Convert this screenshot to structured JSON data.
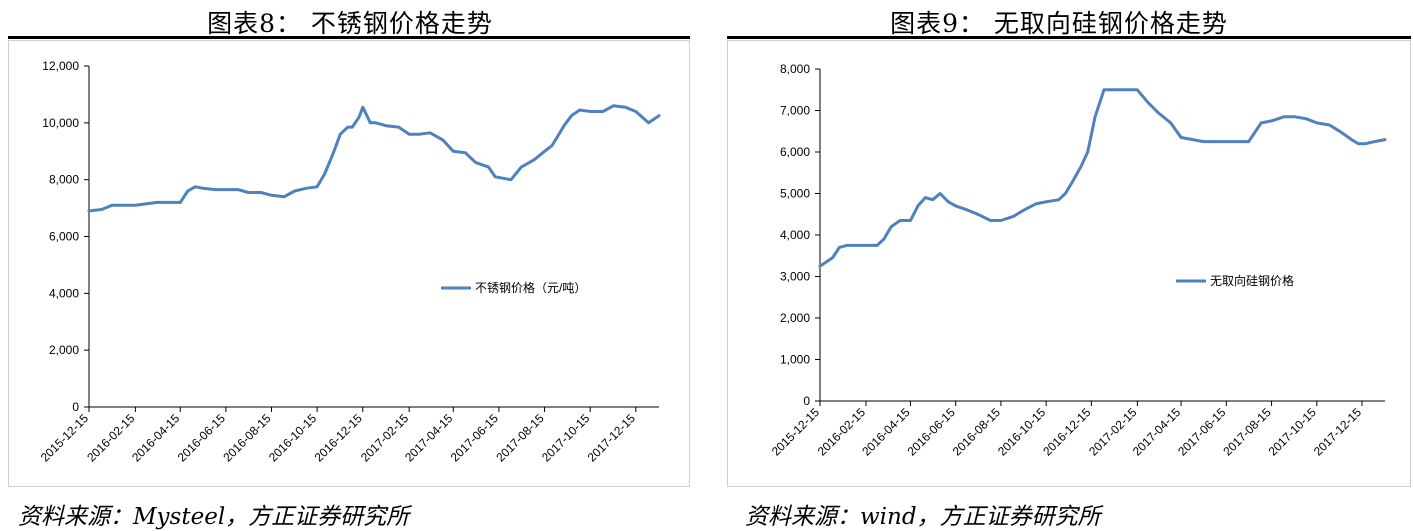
{
  "left_panel": {
    "title": "图表8：  不锈钢价格走势",
    "source": "资料来源：Mysteel，方正证券研究所"
  },
  "right_panel": {
    "title": "图表9：  无取向硅钢价格走势",
    "source": "资料来源：wind，方正证券研究所"
  },
  "line_color": "#4f81bd",
  "chart_data": [
    {
      "type": "line",
      "title": "",
      "xlabel": "",
      "ylabel": "",
      "ylim": [
        0,
        12000
      ],
      "yticks": [
        0,
        2000,
        4000,
        6000,
        8000,
        10000,
        12000
      ],
      "ytick_labels": [
        "0",
        "2,000",
        "4,000",
        "6,000",
        "8,000",
        "10,000",
        "12,000"
      ],
      "xlim": [
        "2015-12-15",
        "2018-01-15"
      ],
      "xtick_labels": [
        "2015-12-15",
        "2016-02-15",
        "2016-04-15",
        "2016-06-15",
        "2016-08-15",
        "2016-10-15",
        "2016-12-15",
        "2017-02-15",
        "2017-04-15",
        "2017-06-15",
        "2017-08-15",
        "2017-10-15",
        "2017-12-15"
      ],
      "grid": false,
      "legend": "center-right",
      "series": [
        {
          "name": "不锈钢价格（元/吨）",
          "x": [
            "2015-12-15",
            "2016-01-01",
            "2016-01-15",
            "2016-02-01",
            "2016-02-15",
            "2016-03-01",
            "2016-03-15",
            "2016-04-01",
            "2016-04-15",
            "2016-04-25",
            "2016-05-05",
            "2016-05-15",
            "2016-06-01",
            "2016-06-15",
            "2016-07-01",
            "2016-07-15",
            "2016-08-01",
            "2016-08-15",
            "2016-09-01",
            "2016-09-15",
            "2016-10-01",
            "2016-10-15",
            "2016-10-25",
            "2016-11-05",
            "2016-11-15",
            "2016-11-25",
            "2016-12-01",
            "2016-12-10",
            "2016-12-15",
            "2016-12-25",
            "2017-01-01",
            "2017-01-15",
            "2017-02-01",
            "2017-02-15",
            "2017-03-01",
            "2017-03-15",
            "2017-04-01",
            "2017-04-15",
            "2017-05-01",
            "2017-05-15",
            "2017-06-01",
            "2017-06-10",
            "2017-06-20",
            "2017-07-01",
            "2017-07-15",
            "2017-08-01",
            "2017-08-15",
            "2017-08-25",
            "2017-09-01",
            "2017-09-10",
            "2017-09-20",
            "2017-10-01",
            "2017-10-15",
            "2017-11-01",
            "2017-11-15",
            "2017-12-01",
            "2017-12-15",
            "2018-01-01",
            "2018-01-15"
          ],
          "y": [
            6900,
            6950,
            7100,
            7100,
            7100,
            7150,
            7200,
            7200,
            7200,
            7600,
            7750,
            7700,
            7650,
            7650,
            7650,
            7550,
            7550,
            7450,
            7400,
            7600,
            7700,
            7750,
            8200,
            8900,
            9600,
            9850,
            9850,
            10200,
            10550,
            10000,
            10000,
            9900,
            9850,
            9600,
            9600,
            9650,
            9400,
            9000,
            8950,
            8600,
            8450,
            8100,
            8050,
            8000,
            8450,
            8700,
            9000,
            9200,
            9500,
            9900,
            10250,
            10450,
            10400,
            10400,
            10600,
            10550,
            10400,
            10000,
            10250
          ]
        }
      ]
    },
    {
      "type": "line",
      "title": "",
      "xlabel": "",
      "ylabel": "",
      "ylim": [
        0,
        8000
      ],
      "yticks": [
        0,
        1000,
        2000,
        3000,
        4000,
        5000,
        6000,
        7000,
        8000
      ],
      "ytick_labels": [
        "0",
        "1,000",
        "2,000",
        "3,000",
        "4,000",
        "5,000",
        "6,000",
        "7,000",
        "8,000"
      ],
      "xlim": [
        "2015-12-15",
        "2018-01-15"
      ],
      "xtick_labels": [
        "2015-12-15",
        "2016-02-15",
        "2016-04-15",
        "2016-06-15",
        "2016-08-15",
        "2016-10-15",
        "2016-12-15",
        "2017-02-15",
        "2017-04-15",
        "2017-06-15",
        "2017-08-15",
        "2017-10-15",
        "2017-12-15"
      ],
      "grid": false,
      "legend": "center-right",
      "series": [
        {
          "name": "无取向硅钢价格",
          "x": [
            "2015-12-15",
            "2016-01-01",
            "2016-01-10",
            "2016-01-20",
            "2016-02-01",
            "2016-02-15",
            "2016-03-01",
            "2016-03-10",
            "2016-03-20",
            "2016-04-01",
            "2016-04-15",
            "2016-04-25",
            "2016-05-05",
            "2016-05-15",
            "2016-05-25",
            "2016-06-05",
            "2016-06-15",
            "2016-07-01",
            "2016-07-15",
            "2016-08-01",
            "2016-08-15",
            "2016-09-01",
            "2016-09-15",
            "2016-10-01",
            "2016-10-15",
            "2016-11-01",
            "2016-11-10",
            "2016-11-20",
            "2016-12-01",
            "2016-12-10",
            "2016-12-20",
            "2017-01-01",
            "2017-01-15",
            "2017-02-01",
            "2017-02-15",
            "2017-03-01",
            "2017-03-15",
            "2017-04-01",
            "2017-04-15",
            "2017-05-01",
            "2017-05-15",
            "2017-06-01",
            "2017-06-15",
            "2017-07-01",
            "2017-07-15",
            "2017-08-01",
            "2017-08-15",
            "2017-09-01",
            "2017-09-15",
            "2017-10-01",
            "2017-10-15",
            "2017-11-01",
            "2017-11-15",
            "2017-12-01",
            "2017-12-10",
            "2017-12-20",
            "2018-01-01",
            "2018-01-15"
          ],
          "y": [
            3250,
            3450,
            3700,
            3750,
            3750,
            3750,
            3750,
            3900,
            4200,
            4350,
            4350,
            4700,
            4900,
            4850,
            5000,
            4800,
            4700,
            4600,
            4500,
            4350,
            4350,
            4450,
            4600,
            4750,
            4800,
            4850,
            5000,
            5300,
            5650,
            6000,
            6850,
            7500,
            7500,
            7500,
            7500,
            7200,
            6950,
            6700,
            6350,
            6300,
            6250,
            6250,
            6250,
            6250,
            6250,
            6700,
            6750,
            6850,
            6850,
            6800,
            6700,
            6650,
            6500,
            6300,
            6200,
            6200,
            6250,
            6300
          ]
        }
      ]
    }
  ]
}
